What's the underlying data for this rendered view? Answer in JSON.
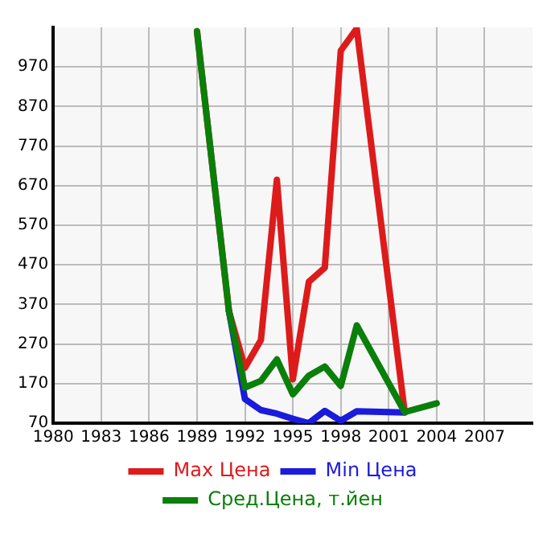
{
  "chart_data": {
    "type": "line",
    "xlim": [
      1980,
      2010
    ],
    "xticks": [
      1980,
      1983,
      1986,
      1989,
      1992,
      1995,
      1998,
      2001,
      2004,
      2007
    ],
    "ylim": [
      70,
      1070
    ],
    "yticks": [
      70,
      170,
      270,
      370,
      470,
      570,
      670,
      770,
      870,
      970
    ],
    "grid": true,
    "legend": "bottom",
    "marker": "none",
    "series": [
      {
        "name": "Max Цена",
        "color": "#dd1b1b",
        "x": [
          1989,
          1991,
          1992,
          1993,
          1994,
          1995,
          1996,
          1997,
          1998,
          1999,
          2002
        ],
        "values": [
          1060,
          353,
          210,
          280,
          685,
          181,
          427,
          463,
          1011,
          1067,
          98
        ]
      },
      {
        "name": "Min Цена",
        "color": "#1b1bdd",
        "x": [
          1991,
          1992,
          1993,
          1994,
          1995,
          1996,
          1997,
          1998,
          1999,
          2002
        ],
        "values": [
          353,
          131,
          103,
          94,
          81,
          70,
          101,
          76,
          100,
          97
        ]
      },
      {
        "name": "Сред.Цена, т.йен",
        "color": "#0a7f0a",
        "x": [
          1989,
          1991,
          1992,
          1993,
          1994,
          1995,
          1996,
          1997,
          1998,
          1999,
          2002,
          2004
        ],
        "values": [
          1060,
          353,
          160,
          177,
          231,
          143,
          190,
          213,
          164,
          317,
          98,
          120
        ]
      }
    ]
  }
}
